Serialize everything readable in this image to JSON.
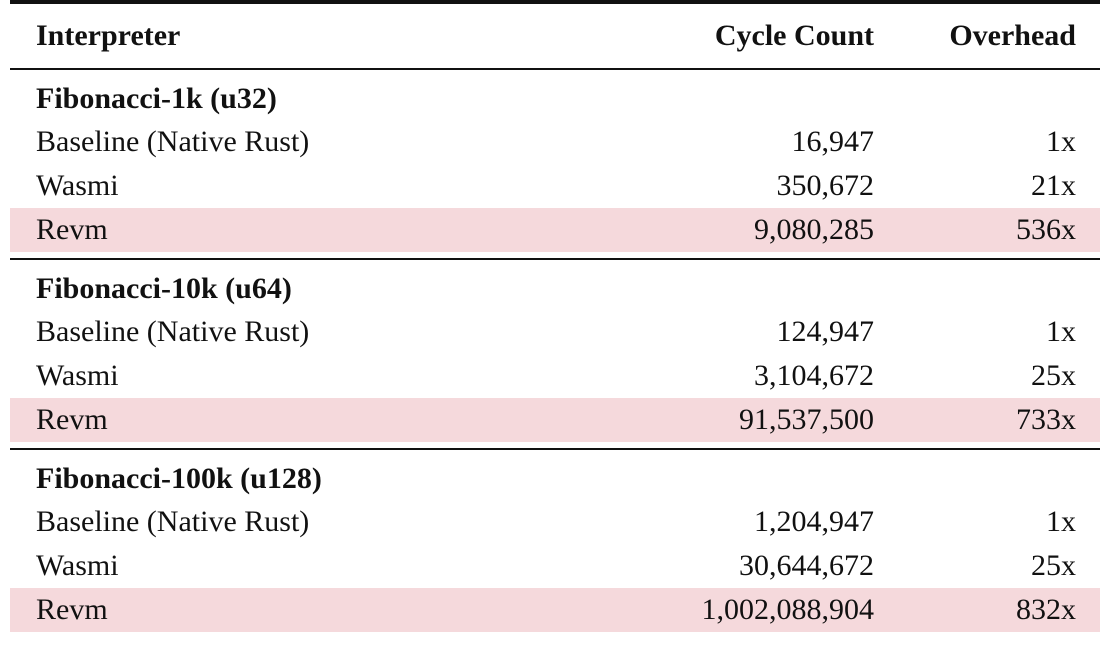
{
  "header": {
    "interpreter": "Interpreter",
    "cycle_count": "Cycle Count",
    "overhead": "Overhead"
  },
  "groups": [
    {
      "title": "Fibonacci-1k (u32)",
      "rows": [
        {
          "interpreter": "Baseline (Native Rust)",
          "cycle_count": "16,947",
          "overhead": "1x"
        },
        {
          "interpreter": "Wasmi",
          "cycle_count": "350,672",
          "overhead": "21x"
        },
        {
          "interpreter": "Revm",
          "cycle_count": "9,080,285",
          "overhead": "536x"
        }
      ]
    },
    {
      "title": "Fibonacci-10k (u64)",
      "rows": [
        {
          "interpreter": "Baseline (Native Rust)",
          "cycle_count": "124,947",
          "overhead": "1x"
        },
        {
          "interpreter": "Wasmi",
          "cycle_count": "3,104,672",
          "overhead": "25x"
        },
        {
          "interpreter": "Revm",
          "cycle_count": "91,537,500",
          "overhead": "733x"
        }
      ]
    },
    {
      "title": "Fibonacci-100k (u128)",
      "rows": [
        {
          "interpreter": "Baseline (Native Rust)",
          "cycle_count": "1,204,947",
          "overhead": "1x"
        },
        {
          "interpreter": "Wasmi",
          "cycle_count": "30,644,672",
          "overhead": "25x"
        },
        {
          "interpreter": "Revm",
          "cycle_count": "1,002,088,904",
          "overhead": "832x"
        }
      ]
    }
  ],
  "colors": {
    "highlight_row": "#f5d9dc",
    "rule": "#111111"
  }
}
